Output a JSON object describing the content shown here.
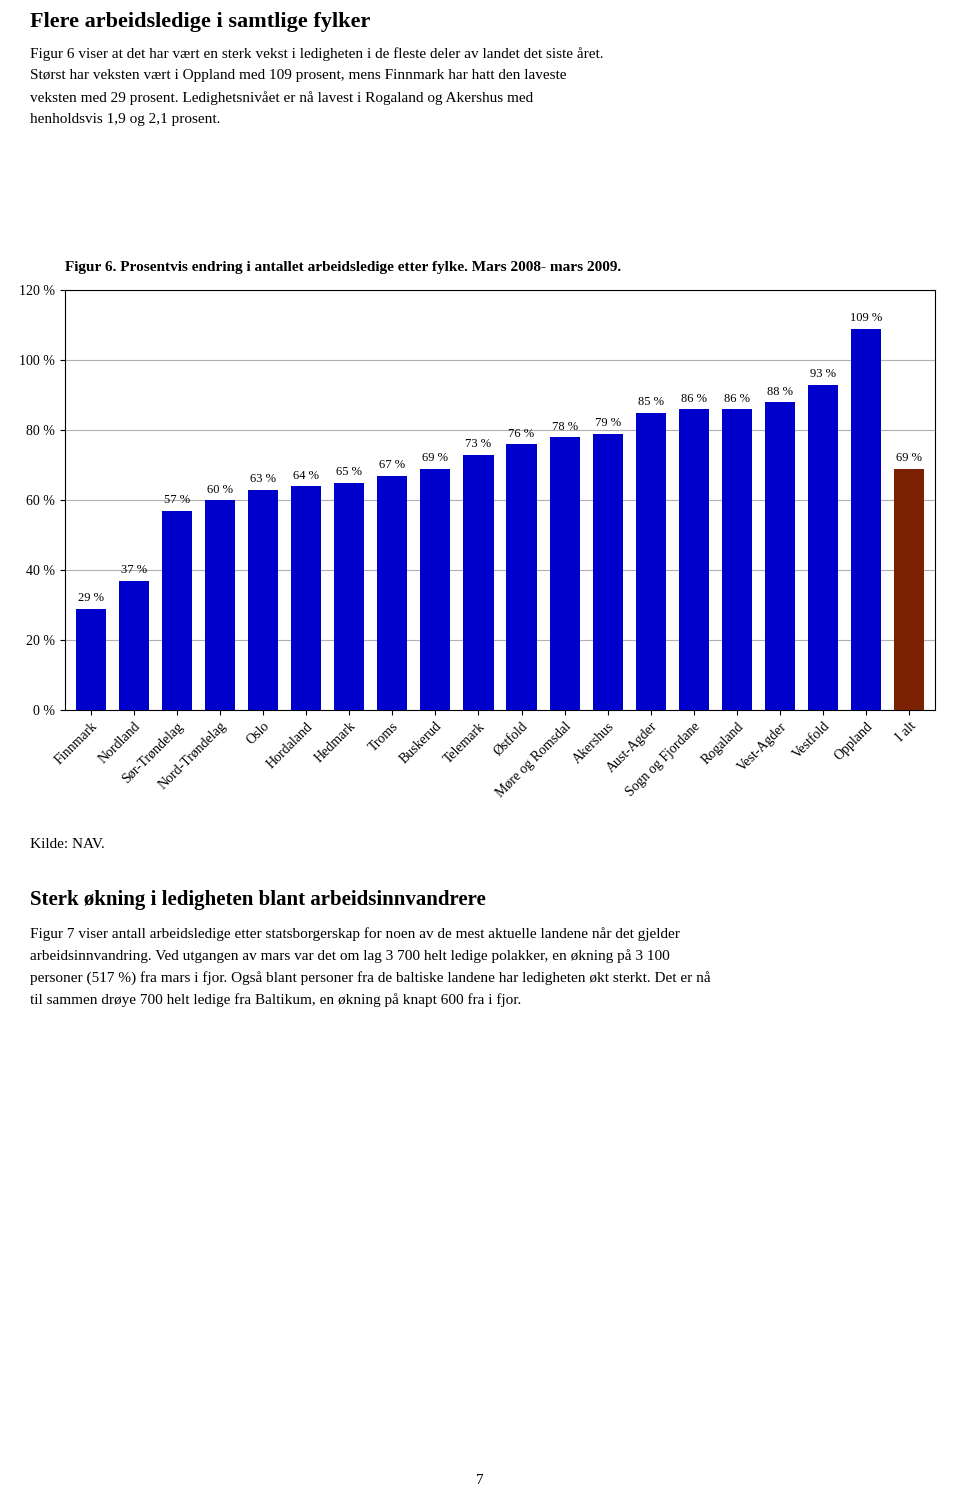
{
  "chart_data": {
    "type": "bar",
    "title": "Figur 6. Prosentvis endring i antallet arbeidsledige etter fylke. Mars 2008- mars 2009.",
    "categories": [
      "Finnmark",
      "Nordland",
      "Sør-Trøndelag",
      "Nord-Trøndelag",
      "Oslo",
      "Hordaland",
      "Hedmark",
      "Troms",
      "Buskerud",
      "Telemark",
      "Østfold",
      "Møre og Romsdal",
      "Akershus",
      "Aust-Agder",
      "Sogn og Fjordane",
      "Rogaland",
      "Vest-Agder",
      "Vestfold",
      "Oppland",
      "I alt"
    ],
    "values": [
      29,
      37,
      57,
      60,
      63,
      64,
      65,
      67,
      69,
      73,
      76,
      78,
      79,
      85,
      86,
      86,
      88,
      93,
      109,
      69
    ],
    "value_labels": [
      "29 %",
      "37 %",
      "57 %",
      "60 %",
      "63 %",
      "64 %",
      "65 %",
      "67 %",
      "69 %",
      "73 %",
      "76 %",
      "78 %",
      "79 %",
      "85 %",
      "86 %",
      "86 %",
      "88 %",
      "93 %",
      "109 %",
      "69 %"
    ],
    "data_labels": true,
    "colors": [
      "#0000cc",
      "#0000cc",
      "#0000cc",
      "#0000cc",
      "#0000cc",
      "#0000cc",
      "#0000cc",
      "#0000cc",
      "#0000cc",
      "#0000cc",
      "#0000cc",
      "#0000cc",
      "#0000cc",
      "#0000cc",
      "#0000cc",
      "#0000cc",
      "#0000cc",
      "#0000cc",
      "#0000cc",
      "#7B2000"
    ],
    "ylim": [
      0,
      120
    ],
    "yticks": [
      {
        "value": 0,
        "label": "0 %"
      },
      {
        "value": 20,
        "label": "20 %"
      },
      {
        "value": 40,
        "label": "40 %"
      },
      {
        "value": 60,
        "label": "60 %"
      },
      {
        "value": 80,
        "label": "80 %"
      },
      {
        "value": 100,
        "label": "100 %"
      },
      {
        "value": 120,
        "label": "120 %"
      }
    ],
    "grid": true,
    "annotations": [
      "Flere arbeidsledige i samtlige fylker",
      "Figur 6 viser at det har vært en sterk vekst i ledigheten i de fleste deler av landet det siste året.",
      "Størst har veksten vært i Oppland med 109 prosent, mens Finnmark har hatt den laveste",
      "veksten med 29 prosent. Ledighetsnivået er nå lavest i Rogaland og Akershus med",
      "henholdsvis 1,9 og 2,1 prosent.",
      "Kilde: NAV.",
      "Sterk økning i ledigheten blant arbeidsinnvandrere",
      "Figur 7 viser antall arbeidsledige etter statsborgerskap for noen av de mest aktuelle landene når det gjelder",
      "arbeidsinnvandring. Ved utgangen av mars var det om lag 3 700 helt ledige polakker, en økning på 3 100",
      "personer (517 %) fra mars i fjor. Også blant personer fra de baltiske landene har ledigheten økt sterkt. Det er nå",
      "til sammen drøye 700 helt ledige fra Baltikum, en økning på knapt 600 fra i fjor.",
      "7"
    ]
  }
}
